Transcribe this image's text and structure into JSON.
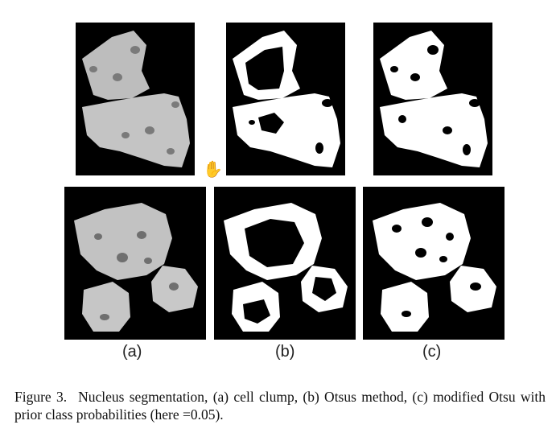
{
  "figure": {
    "number_label": "Figure 3.",
    "caption_text": "Nucleus segmentation, (a) cell clump, (b) Otsus method, (c) modified Otsu with prior class probabilities (here =0.05).",
    "sublabels": [
      "(a)",
      "(b)",
      "(c)"
    ]
  },
  "panels": {
    "top_row": [
      "cell clump (grayscale)",
      "Otsu binary",
      "modified Otsu binary"
    ],
    "bottom_row": [
      "cell clump (grayscale)",
      "Otsu binary",
      "modified Otsu binary"
    ]
  },
  "cursor_icon": "hand-cursor-icon",
  "colors": {
    "background": "#000000",
    "cell_gray": "#b8b8b8",
    "mask": "#ffffff",
    "nucleus_gray": "#6f6f6f"
  }
}
